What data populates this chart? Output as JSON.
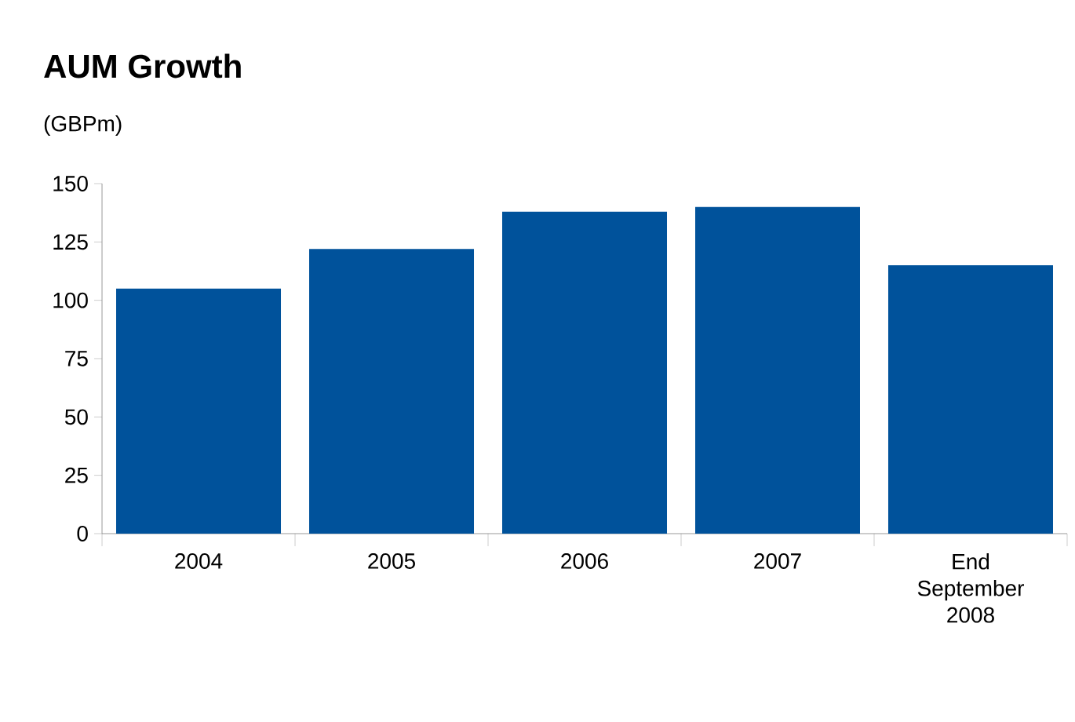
{
  "chart_data": {
    "type": "bar",
    "title": "AUM Growth",
    "ylabel": "(GBPm)",
    "categories": [
      "2004",
      "2005",
      "2006",
      "2007",
      "End September 2008"
    ],
    "values": [
      105,
      122,
      138,
      140,
      115
    ],
    "color": "#00529b",
    "ylim": [
      0,
      150
    ],
    "yticks": [
      0,
      25,
      50,
      75,
      100,
      125,
      150
    ]
  }
}
